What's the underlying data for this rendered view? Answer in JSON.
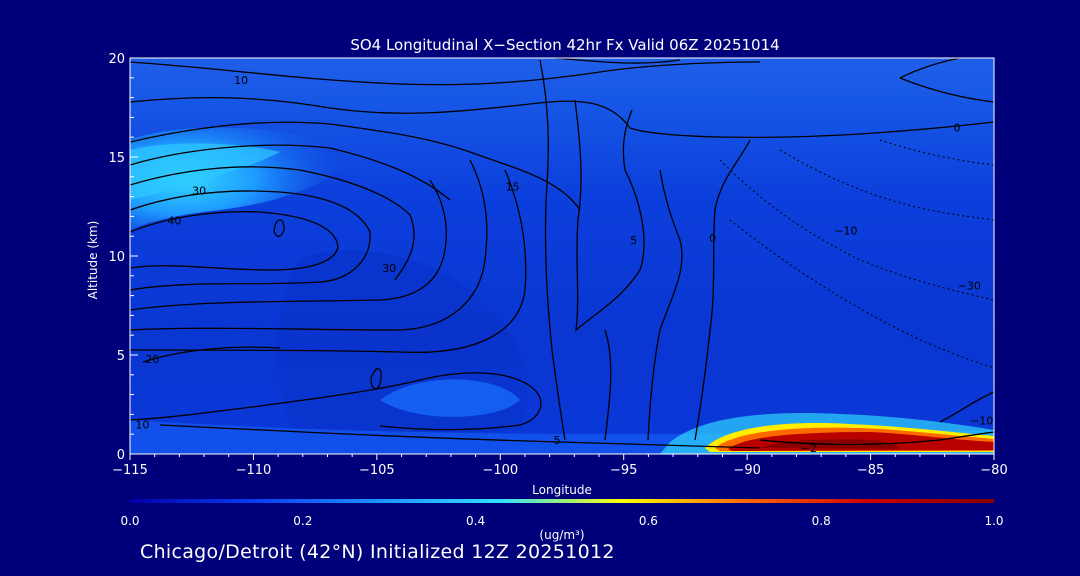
{
  "chart_data": {
    "type": "heatmap",
    "title": "SO4 Longitudinal X−Section 42hr  Fx Valid 06Z 20251014",
    "xlabel": "Longitude",
    "ylabel": "Altitude (km)",
    "xlim": [
      -115,
      -80
    ],
    "ylim": [
      0,
      20
    ],
    "x_ticks": [
      -115,
      -110,
      -105,
      -100,
      -95,
      -90,
      -85,
      -80
    ],
    "x_tick_labels": [
      "−115",
      "−110",
      "−105",
      "−100",
      "−95",
      "−90",
      "−85",
      "−80"
    ],
    "y_ticks": [
      0,
      5,
      10,
      15,
      20
    ],
    "y_tick_labels": [
      "0",
      "5",
      "10",
      "15",
      "20"
    ],
    "colorbar": {
      "min": 0.0,
      "max": 1.0,
      "ticks": [
        0.0,
        0.2,
        0.4,
        0.6,
        0.8,
        1.0
      ],
      "tick_labels": [
        "0.0",
        "0.2",
        "0.4",
        "0.6",
        "0.8",
        "1.0"
      ],
      "units": "(ug/m³)",
      "colors": [
        "#0000a8",
        "#0a3cf0",
        "#1e90ff",
        "#33e0ff",
        "#ffff00",
        "#ff6600",
        "#cc0000",
        "#880000"
      ]
    },
    "field_summary": [
      {
        "region": "background",
        "value": 0.15
      },
      {
        "region": "upper-left plume",
        "lon": [
          -115,
          -108
        ],
        "alt": [
          12.5,
          16
        ],
        "value": 0.35
      },
      {
        "region": "surface hot spot",
        "lon": [
          -90,
          -80
        ],
        "alt": [
          0,
          1.5
        ],
        "value": 1.0
      }
    ],
    "contour_labels": [
      {
        "text": "10",
        "lon": -110.5,
        "alt": 18.9
      },
      {
        "text": "0",
        "lon": -81.5,
        "alt": 16.5
      },
      {
        "text": "30",
        "lon": -112.2,
        "alt": 13.3
      },
      {
        "text": "40",
        "lon": -113.2,
        "alt": 11.8
      },
      {
        "text": "15",
        "lon": -99.5,
        "alt": 13.5
      },
      {
        "text": "30",
        "lon": -104.5,
        "alt": 9.4
      },
      {
        "text": "5",
        "lon": -94.6,
        "alt": 10.8
      },
      {
        "text": "0",
        "lon": -91.4,
        "alt": 10.9
      },
      {
        "text": "−10",
        "lon": -86,
        "alt": 11.3
      },
      {
        "text": "−30",
        "lon": -81,
        "alt": 8.5
      },
      {
        "text": "20",
        "lon": -114.1,
        "alt": 4.8
      },
      {
        "text": "10",
        "lon": -114.5,
        "alt": 1.5
      },
      {
        "text": "−10",
        "lon": -80.5,
        "alt": 1.7
      },
      {
        "text": "−2",
        "lon": -87.5,
        "alt": 0.3
      },
      {
        "text": "5",
        "lon": -97.7,
        "alt": 0.7
      }
    ]
  },
  "footer": "Chicago/Detroit (42°N) Initialized 12Z 20251012"
}
